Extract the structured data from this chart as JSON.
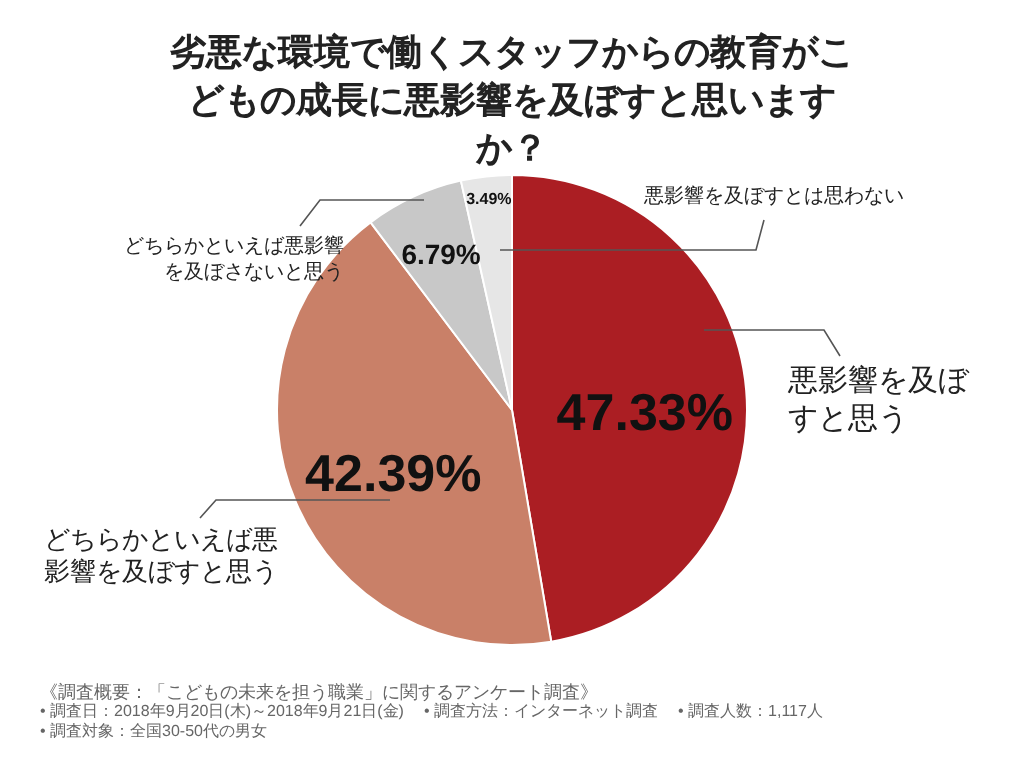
{
  "chart_data": {
    "type": "pie",
    "title": "劣悪な環境で働くスタッフからの教育がこどもの成長に悪影響を及ぼすと思いますか？",
    "categories": [
      "悪影響を及ぼすと思う",
      "どちらかといえば悪影響を及ぼすと思う",
      "どちらかといえば悪影響を及ぼさないと思う",
      "悪影響を及ぼすとは思わない"
    ],
    "values": [
      47.33,
      42.39,
      6.79,
      3.49
    ],
    "colors": [
      "#ab1e23",
      "#c98068",
      "#c8c8c8",
      "#e6e6e6"
    ],
    "value_labels": [
      "47.33%",
      "42.39%",
      "6.79%",
      "3.49%"
    ],
    "legend": false,
    "annotations": [
      "《調査概要：「こどもの未来を担う職業」に関するアンケート調査》",
      "• 調査日：2018年9月20日(木)～2018年9月21日(金)",
      "• 調査方法：インターネット調査",
      "• 調査人数：1,117人",
      "• 調査対象：全国30-50代の男女"
    ]
  }
}
